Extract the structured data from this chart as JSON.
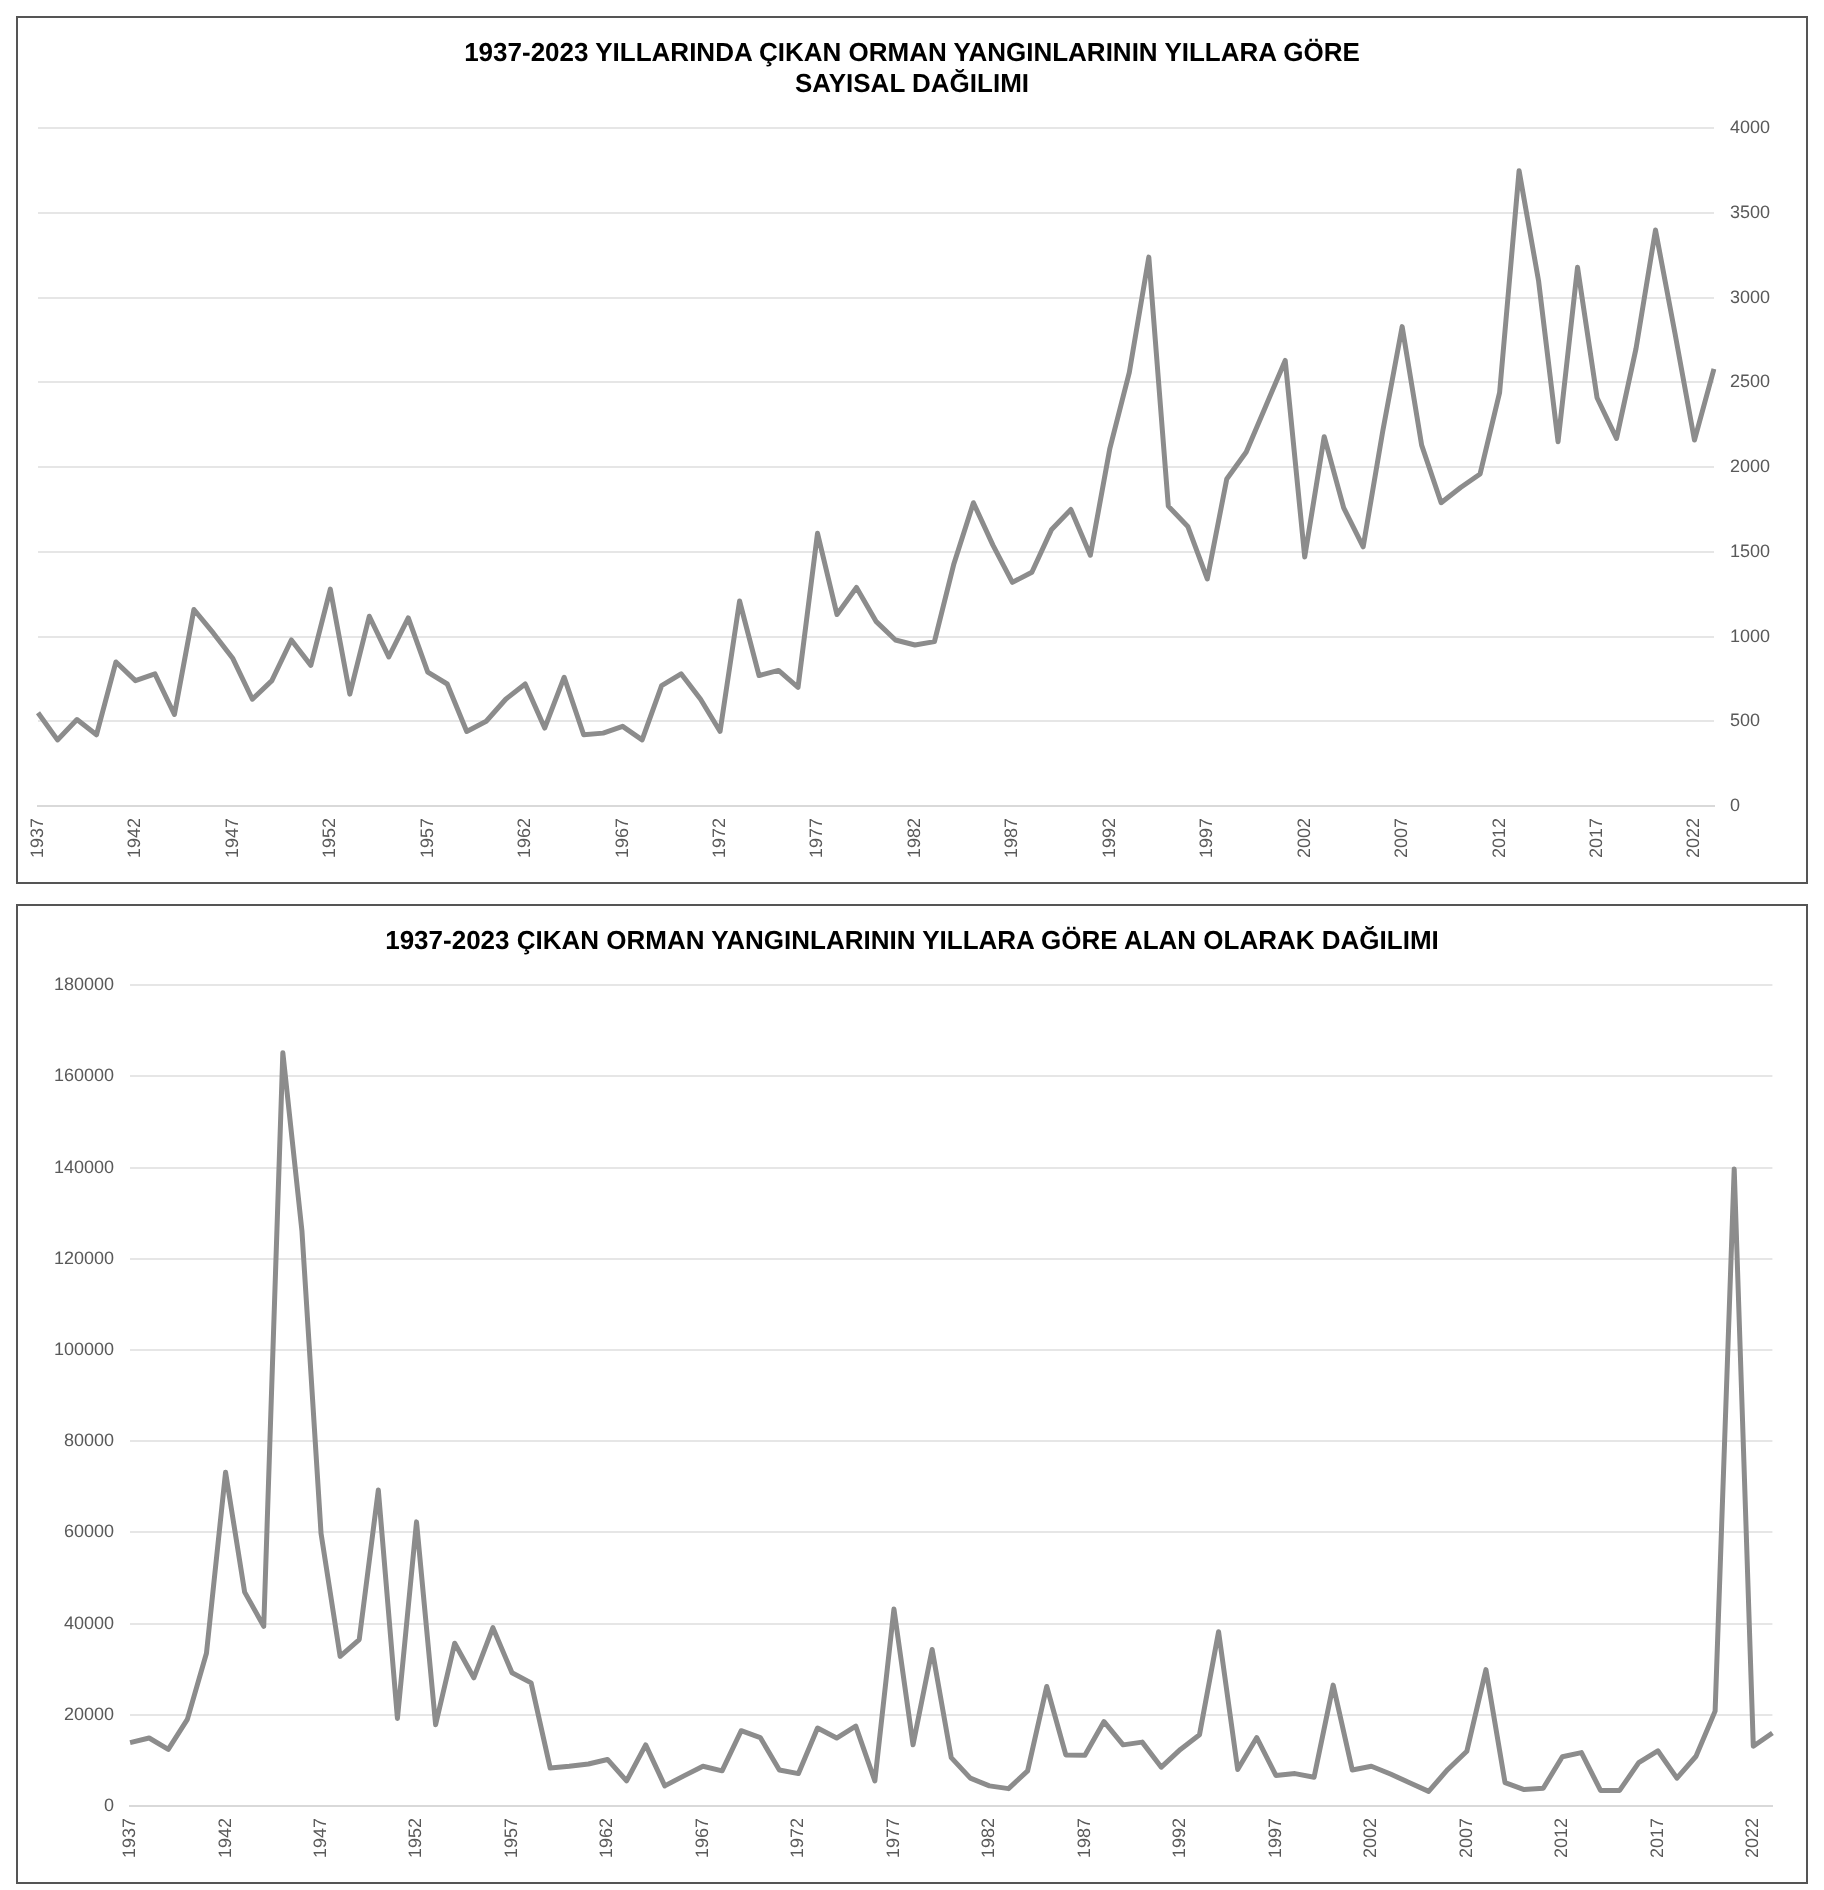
{
  "chart_data": [
    {
      "type": "line",
      "title": "1937-2023 YILLARINDA ÇIKAN ORMAN YANGINLARININ YILLARA GÖRE\nSAYISAL DAĞILIMI",
      "categories": [
        "1937",
        null,
        null,
        null,
        null,
        "1942",
        null,
        null,
        null,
        null,
        "1947",
        null,
        null,
        null,
        null,
        "1952",
        null,
        null,
        null,
        null,
        "1957",
        null,
        null,
        null,
        null,
        "1962",
        null,
        null,
        null,
        null,
        "1967",
        null,
        null,
        null,
        null,
        "1972",
        null,
        null,
        null,
        null,
        "1977",
        null,
        null,
        null,
        null,
        "1982",
        null,
        null,
        null,
        null,
        "1987",
        null,
        null,
        null,
        null,
        "1992",
        null,
        null,
        null,
        null,
        "1997",
        null,
        null,
        null,
        null,
        "2002",
        null,
        null,
        null,
        null,
        "2007",
        null,
        null,
        null,
        null,
        "2012",
        null,
        null,
        null,
        null,
        "2017",
        null,
        null,
        null,
        null,
        "2022",
        null
      ],
      "series": [
        {
          "color": "#8c8c8c",
          "values": [
            550,
            390,
            510,
            420,
            850,
            740,
            780,
            540,
            1160,
            1020,
            870,
            630,
            740,
            980,
            830,
            1280,
            660,
            1120,
            880,
            1110,
            790,
            720,
            440,
            500,
            630,
            720,
            460,
            760,
            420,
            430,
            470,
            390,
            710,
            780,
            630,
            440,
            1210,
            770,
            800,
            700,
            1610,
            1130,
            1290,
            1090,
            980,
            950,
            970,
            1430,
            1790,
            1540,
            1320,
            1380,
            1630,
            1750,
            1480,
            2110,
            2560,
            3240,
            1770,
            1650,
            1340,
            1930,
            2090,
            2360,
            2630,
            1470,
            2180,
            1760,
            1530,
            2210,
            2830,
            2130,
            1790,
            1880,
            1960,
            2440,
            3750,
            3100,
            2150,
            3180,
            2410,
            2170,
            2700,
            3400,
            2790,
            2160,
            2580
          ]
        }
      ],
      "ylim": [
        0,
        4000
      ],
      "yticks": [
        0,
        500,
        1000,
        1500,
        2000,
        2500,
        3000,
        3500,
        4000
      ],
      "grid": "y",
      "legend": false,
      "marker": "none",
      "line_style": "solid"
    },
    {
      "type": "line",
      "title": "1937-2023 ÇIKAN ORMAN YANGINLARININ YILLARA GÖRE ALAN OLARAK DAĞILIMI",
      "categories": [
        "1937",
        null,
        null,
        null,
        null,
        "1942",
        null,
        null,
        null,
        null,
        "1947",
        null,
        null,
        null,
        null,
        "1952",
        null,
        null,
        null,
        null,
        "1957",
        null,
        null,
        null,
        null,
        "1962",
        null,
        null,
        null,
        null,
        "1967",
        null,
        null,
        null,
        null,
        "1972",
        null,
        null,
        null,
        null,
        "1977",
        null,
        null,
        null,
        null,
        "1982",
        null,
        null,
        null,
        null,
        "1987",
        null,
        null,
        null,
        null,
        "1992",
        null,
        null,
        null,
        null,
        "1997",
        null,
        null,
        null,
        null,
        "2002",
        null,
        null,
        null,
        null,
        "2007",
        null,
        null,
        null,
        null,
        "2012",
        null,
        null,
        null,
        null,
        "2017",
        null,
        null,
        null,
        null,
        "2022",
        null
      ],
      "series": [
        {
          "color": "#8c8c8c",
          "values": [
            13900,
            14900,
            12400,
            19000,
            33500,
            73200,
            46900,
            39400,
            165200,
            126100,
            59800,
            32800,
            36500,
            69300,
            19200,
            62300,
            17800,
            35700,
            28100,
            39100,
            29200,
            27000,
            8300,
            8700,
            9200,
            10200,
            5500,
            13400,
            4400,
            6600,
            8700,
            7700,
            16500,
            15000,
            7900,
            7100,
            17100,
            14900,
            17500,
            5500,
            43200,
            13400,
            34300,
            10600,
            6100,
            4400,
            3800,
            7700,
            26200,
            11200,
            11100,
            18500,
            13400,
            14000,
            8500,
            12400,
            15600,
            38200,
            8000,
            15000,
            6700,
            7100,
            6300,
            26500,
            7900,
            8700,
            7000,
            5100,
            3200,
            8000,
            12000,
            29900,
            5100,
            3600,
            3900,
            10800,
            11700,
            3400,
            3400,
            9500,
            12100,
            6100,
            10900,
            20800,
            139700,
            13100,
            16000
          ]
        }
      ],
      "ylim": [
        0,
        180000
      ],
      "yticks": [
        0,
        20000,
        40000,
        60000,
        80000,
        100000,
        120000,
        140000,
        160000,
        180000
      ],
      "grid": "y",
      "legend": false,
      "marker": "none",
      "line_style": "solid"
    }
  ]
}
